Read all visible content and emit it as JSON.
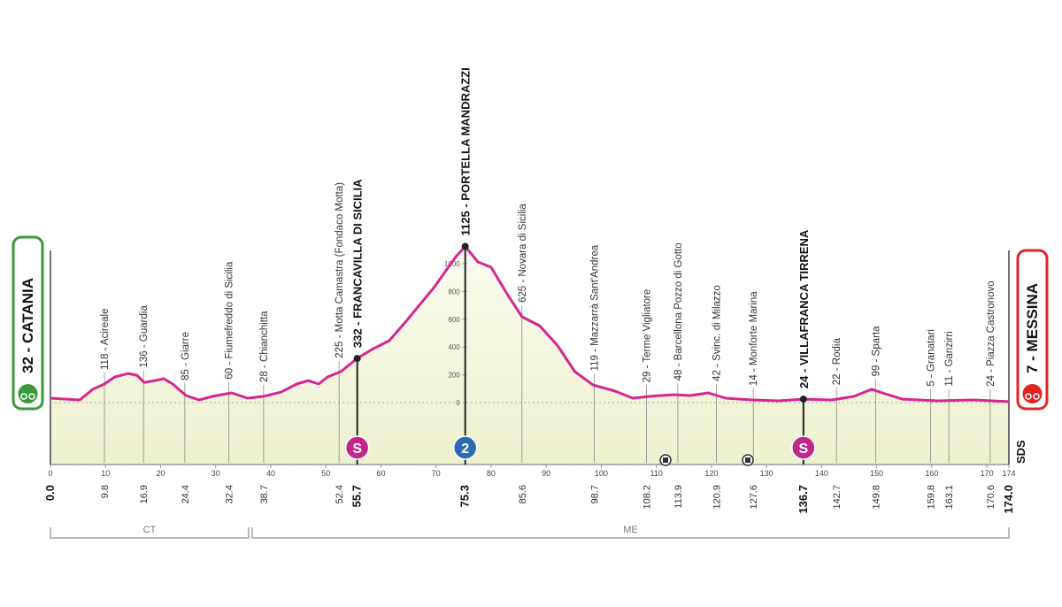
{
  "chart_data": {
    "type": "profile",
    "color": "#d6268f",
    "fill": "#f1f3d8",
    "x": [
      0,
      2.9,
      5.3,
      7.7,
      9.8,
      11.7,
      14.1,
      15.7,
      17,
      19,
      20.6,
      22.2,
      24.6,
      27,
      29.4,
      32.9,
      35.8,
      38.7,
      41.9,
      44.7,
      46.8,
      48.7,
      50.3,
      52.7,
      55.7,
      58.3,
      61.5,
      64.7,
      69.6,
      73.6,
      75.3,
      77.6,
      80,
      83.2,
      85.6,
      88.8,
      92,
      95.2,
      98.5,
      102.5,
      105.7,
      108.9,
      113,
      116.2,
      119.4,
      122.6,
      127.4,
      132.2,
      136.7,
      141.9,
      145.9,
      149.1,
      151.5,
      154.7,
      161.1,
      167.6,
      174
    ],
    "values": [
      32,
      25,
      19,
      96,
      134,
      185,
      210,
      197,
      146,
      159,
      172,
      134,
      51,
      19,
      45,
      70,
      32,
      45,
      76,
      134,
      159,
      134,
      185,
      223,
      318,
      382,
      446,
      592,
      828,
      1051,
      1125,
      1013,
      975,
      764,
      618,
      554,
      414,
      223,
      127,
      83,
      32,
      45,
      57,
      51,
      70,
      32,
      19,
      13,
      25,
      19,
      45,
      96,
      64,
      25,
      13,
      19,
      7
    ],
    "xlim": [
      0,
      174
    ],
    "ylim": [
      -446,
      1300
    ],
    "xticks": [
      0,
      10,
      20,
      30,
      40,
      50,
      60,
      70,
      80,
      90,
      100,
      110,
      120,
      130,
      140,
      150,
      160,
      170,
      174
    ],
    "yticks": [
      0,
      200,
      400,
      600,
      800,
      1000
    ],
    "waypoints": [
      {
        "name": "32 - CATANIA",
        "km": {
          "value": 0,
          "label": "0.0"
        },
        "kind": "start",
        "major": true
      },
      {
        "name": "118 - Acireale",
        "km": 9.8
      },
      {
        "name": "136 - Guardia",
        "km": 16.9
      },
      {
        "name": "85 - Giarre",
        "km": 24.4
      },
      {
        "name": "60 - Fiumefreddo di Sicilia",
        "km": 32.4
      },
      {
        "name": "28 - Chianchitta",
        "km": 38.7
      },
      {
        "name": "225 - Motta Camastra (Fondaco Motta)",
        "km": 52.4
      },
      {
        "name": "332 - FRANCAVILLA DI SICILIA",
        "km": 55.7,
        "major": true,
        "icon": "S"
      },
      {
        "name": "1125 - PORTELLA MANDRAZZI",
        "km": 75.3,
        "major": true,
        "icon": "2"
      },
      {
        "name": "625 - Novara di Sicilia",
        "km": 85.6
      },
      {
        "name": "119 - Mazzarrà   Sant'Andrea",
        "km": 98.7
      },
      {
        "name": "29 - Terme Vigliatore",
        "km": 108.2
      },
      {
        "name": "48 - Barcellona Pozzo di Gotto",
        "km": 113.9
      },
      {
        "name": "42 - Svinc. di Milazzo",
        "km": 120.9
      },
      {
        "name": "14 - Monforte Marina",
        "km": 127.6
      },
      {
        "name": "24 - VILLAFRANCA TIRRENA",
        "km": 136.7,
        "major": true,
        "icon": "S"
      },
      {
        "name": "22 - Rodia",
        "km": 142.7
      },
      {
        "name": "99 - Sparta",
        "km": 149.8
      },
      {
        "name": "5 - Granatari",
        "km": 159.8
      },
      {
        "name": "11 - Ganzirri",
        "km": 163.1
      },
      {
        "name": "24 - Piazza Castronovo",
        "km": 170.6
      },
      {
        "name": "7 - MESSINA",
        "km": {
          "value": 174,
          "label": "174.0"
        },
        "kind": "finish",
        "major": true
      }
    ],
    "regions": [
      {
        "name": "CT",
        "start_km": 0,
        "end_km": 36.3
      },
      {
        "name": "ME",
        "start_km": 36.3,
        "end_km": 174
      }
    ],
    "logo": "SDS"
  }
}
